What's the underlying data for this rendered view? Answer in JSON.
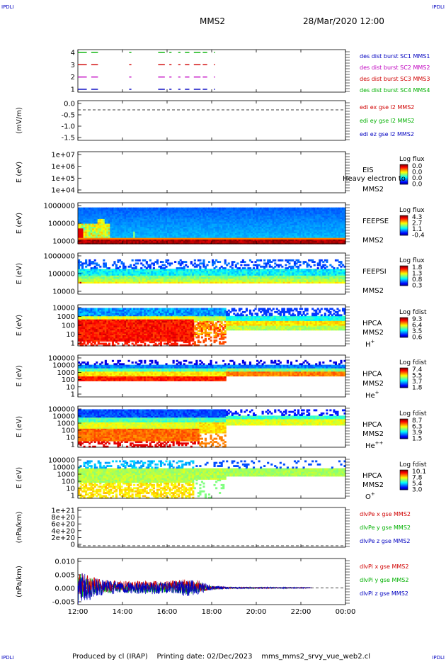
{
  "corner_marks": [
    "IPDLI",
    "IPDLI",
    "IPDLI",
    "IPDLI"
  ],
  "header": {
    "spacecraft": "MMS2",
    "datetime": "28/Mar/2020 12:00"
  },
  "footer": {
    "text": "Produced by cl (IRAP)    Printing date: 02/Dec/2023    mms_mms2_srvy_vue_web2.cl"
  },
  "colors": {
    "black": "#000000",
    "red": "#d00000",
    "green": "#00b000",
    "blue": "#0000c0",
    "magenta": "#c000c0"
  },
  "chart_data": {
    "type": "line",
    "x_axis": {
      "ticks": [
        "12:00",
        "14:00",
        "16:00",
        "18:00",
        "20:00",
        "22:00",
        "00:00"
      ],
      "range_hours": [
        12,
        24
      ]
    },
    "panels": [
      {
        "kind": "lines",
        "ylabel": "",
        "yticks": [
          "4",
          "3",
          "2",
          "1"
        ],
        "legend": [
          {
            "text": "des dist burst SC1 MMS1",
            "color": "#0000c0"
          },
          {
            "text": "des dist burst SC2 MMS2",
            "color": "#c000c0"
          },
          {
            "text": "des dist burst SC3 MMS3",
            "color": "#d00000"
          },
          {
            "text": "des dist burst SC4 MMS4",
            "color": "#00b000"
          }
        ],
        "series": [
          {
            "level": 1,
            "color": "#0000c0"
          },
          {
            "level": 2,
            "color": "#c000c0"
          },
          {
            "level": 3,
            "color": "#d00000"
          },
          {
            "level": 4,
            "color": "#00b000"
          }
        ],
        "burst_intervals": [
          [
            12.0,
            12.4
          ],
          [
            12.6,
            12.9
          ],
          [
            14.3,
            14.4
          ],
          [
            15.6,
            15.9
          ],
          [
            16.1,
            16.2
          ],
          [
            16.5,
            16.6
          ],
          [
            16.8,
            17.0
          ],
          [
            17.2,
            17.5
          ],
          [
            17.6,
            17.8
          ],
          [
            18.1,
            18.15
          ]
        ]
      },
      {
        "kind": "lines",
        "ylabel": "(mV/m)",
        "yticks": [
          "0.0",
          "-0.5",
          "-1.0",
          "-1.5"
        ],
        "ylim": [
          -1.5,
          0.2
        ],
        "legend": [
          {
            "text": "edi ex gse l2 MMS2",
            "color": "#d00000"
          },
          {
            "text": "edi ey gse l2 MMS2",
            "color": "#00b000"
          },
          {
            "text": "edi ez gse l2 MMS2",
            "color": "#0000c0"
          }
        ],
        "dashed_zero": true
      },
      {
        "kind": "spectrogram",
        "ylabel": "E (eV)",
        "yticks": [
          "1e+07",
          "1e+06",
          "1e+05",
          "1e+04"
        ],
        "label_lines": [
          "EIS",
          "MMS2"
        ],
        "overlay_text": "Heavy electron to",
        "colorbar": {
          "title": "Log flux",
          "ticks": [
            "0.0",
            "0.0",
            "0.0",
            "0.0"
          ]
        },
        "profile": "empty"
      },
      {
        "kind": "spectrogram",
        "ylabel": "E (eV)",
        "yticks": [
          "1000000",
          "100000",
          "10000"
        ],
        "label_lines": [
          "FEEPSE",
          "MMS2"
        ],
        "colorbar": {
          "title": "Log flux",
          "ticks": [
            "4.3",
            "2.7",
            "1.1",
            "-0.4"
          ]
        },
        "profile": "feepse"
      },
      {
        "kind": "spectrogram",
        "ylabel": "E (eV)",
        "yticks": [
          "1000000",
          "100000",
          "10000"
        ],
        "label_lines": [
          "FEEPSI",
          "MMS2"
        ],
        "colorbar": {
          "title": "Log flux",
          "ticks": [
            "1.8",
            "1.3",
            "0.8",
            "0.3"
          ]
        },
        "profile": "feepsi"
      },
      {
        "kind": "spectrogram",
        "ylabel": "E (eV)",
        "yticks": [
          "10000",
          "1000",
          "100",
          "10",
          "1"
        ],
        "label_lines": [
          "HPCA",
          "MMS2",
          "H+"
        ],
        "colorbar": {
          "title": "Log fdist",
          "ticks": [
            "9.3",
            "6.4",
            "3.5",
            "0.6"
          ]
        },
        "profile": "hplus"
      },
      {
        "kind": "spectrogram",
        "ylabel": "E (eV)",
        "yticks": [
          "100000",
          "10000",
          "1000",
          "100",
          "10",
          "1"
        ],
        "label_lines": [
          "HPCA",
          "MMS2",
          "He+"
        ],
        "colorbar": {
          "title": "Log fdist",
          "ticks": [
            "7.4",
            "5.5",
            "3.7",
            "1.8"
          ]
        },
        "profile": "heplus"
      },
      {
        "kind": "spectrogram",
        "ylabel": "E (eV)",
        "yticks": [
          "100000",
          "10000",
          "1000",
          "100",
          "10",
          "1"
        ],
        "label_lines": [
          "HPCA",
          "MMS2",
          "He++"
        ],
        "colorbar": {
          "title": "Log fdist",
          "ticks": [
            "8.7",
            "6.3",
            "3.9",
            "1.5"
          ]
        },
        "profile": "heplusplus"
      },
      {
        "kind": "spectrogram",
        "ylabel": "E (eV)",
        "yticks": [
          "100000",
          "10000",
          "1000",
          "100",
          "10",
          "1"
        ],
        "label_lines": [
          "HPCA",
          "MMS2",
          "O+"
        ],
        "colorbar": {
          "title": "Log fdist",
          "ticks": [
            "10.1",
            "7.8",
            "5.4",
            "3.0"
          ]
        },
        "profile": "oplus"
      },
      {
        "kind": "lines",
        "ylabel": "(nPa/km)",
        "yticks": [
          "1e+21",
          "8e+20",
          "6e+20",
          "4e+20",
          "2e+20",
          "0"
        ],
        "legend": [
          {
            "text": "dlvPe x gse MMS2",
            "color": "#d00000"
          },
          {
            "text": "dlvPe y gse MMS2",
            "color": "#00b000"
          },
          {
            "text": "dlvPe z gse MMS2",
            "color": "#0000c0"
          }
        ],
        "dashed_zero": true
      },
      {
        "kind": "lines",
        "ylabel": "(nPa/km)",
        "yticks": [
          "0.010",
          "0.005",
          "0.000",
          "-0.005"
        ],
        "ylim": [
          -0.008,
          0.014
        ],
        "legend": [
          {
            "text": "dlvPi x gse MMS2",
            "color": "#d00000"
          },
          {
            "text": "dlvPi y gse MMS2",
            "color": "#00b000"
          },
          {
            "text": "dlvPi z gse MMS2",
            "color": "#0000c0"
          }
        ],
        "dashed_zero": true,
        "noise_envelope": {
          "t": [
            12.0,
            12.5,
            13.0,
            14.0,
            15.0,
            16.0,
            17.0,
            17.5,
            18.0,
            19.0,
            20.0,
            21.0,
            22.0,
            22.5
          ],
          "amp": [
            0.009,
            0.006,
            0.004,
            0.003,
            0.003,
            0.003,
            0.004,
            0.003,
            0.001,
            0.0004,
            0.0004,
            0.0003,
            0.0003,
            0.0002
          ]
        }
      }
    ]
  }
}
